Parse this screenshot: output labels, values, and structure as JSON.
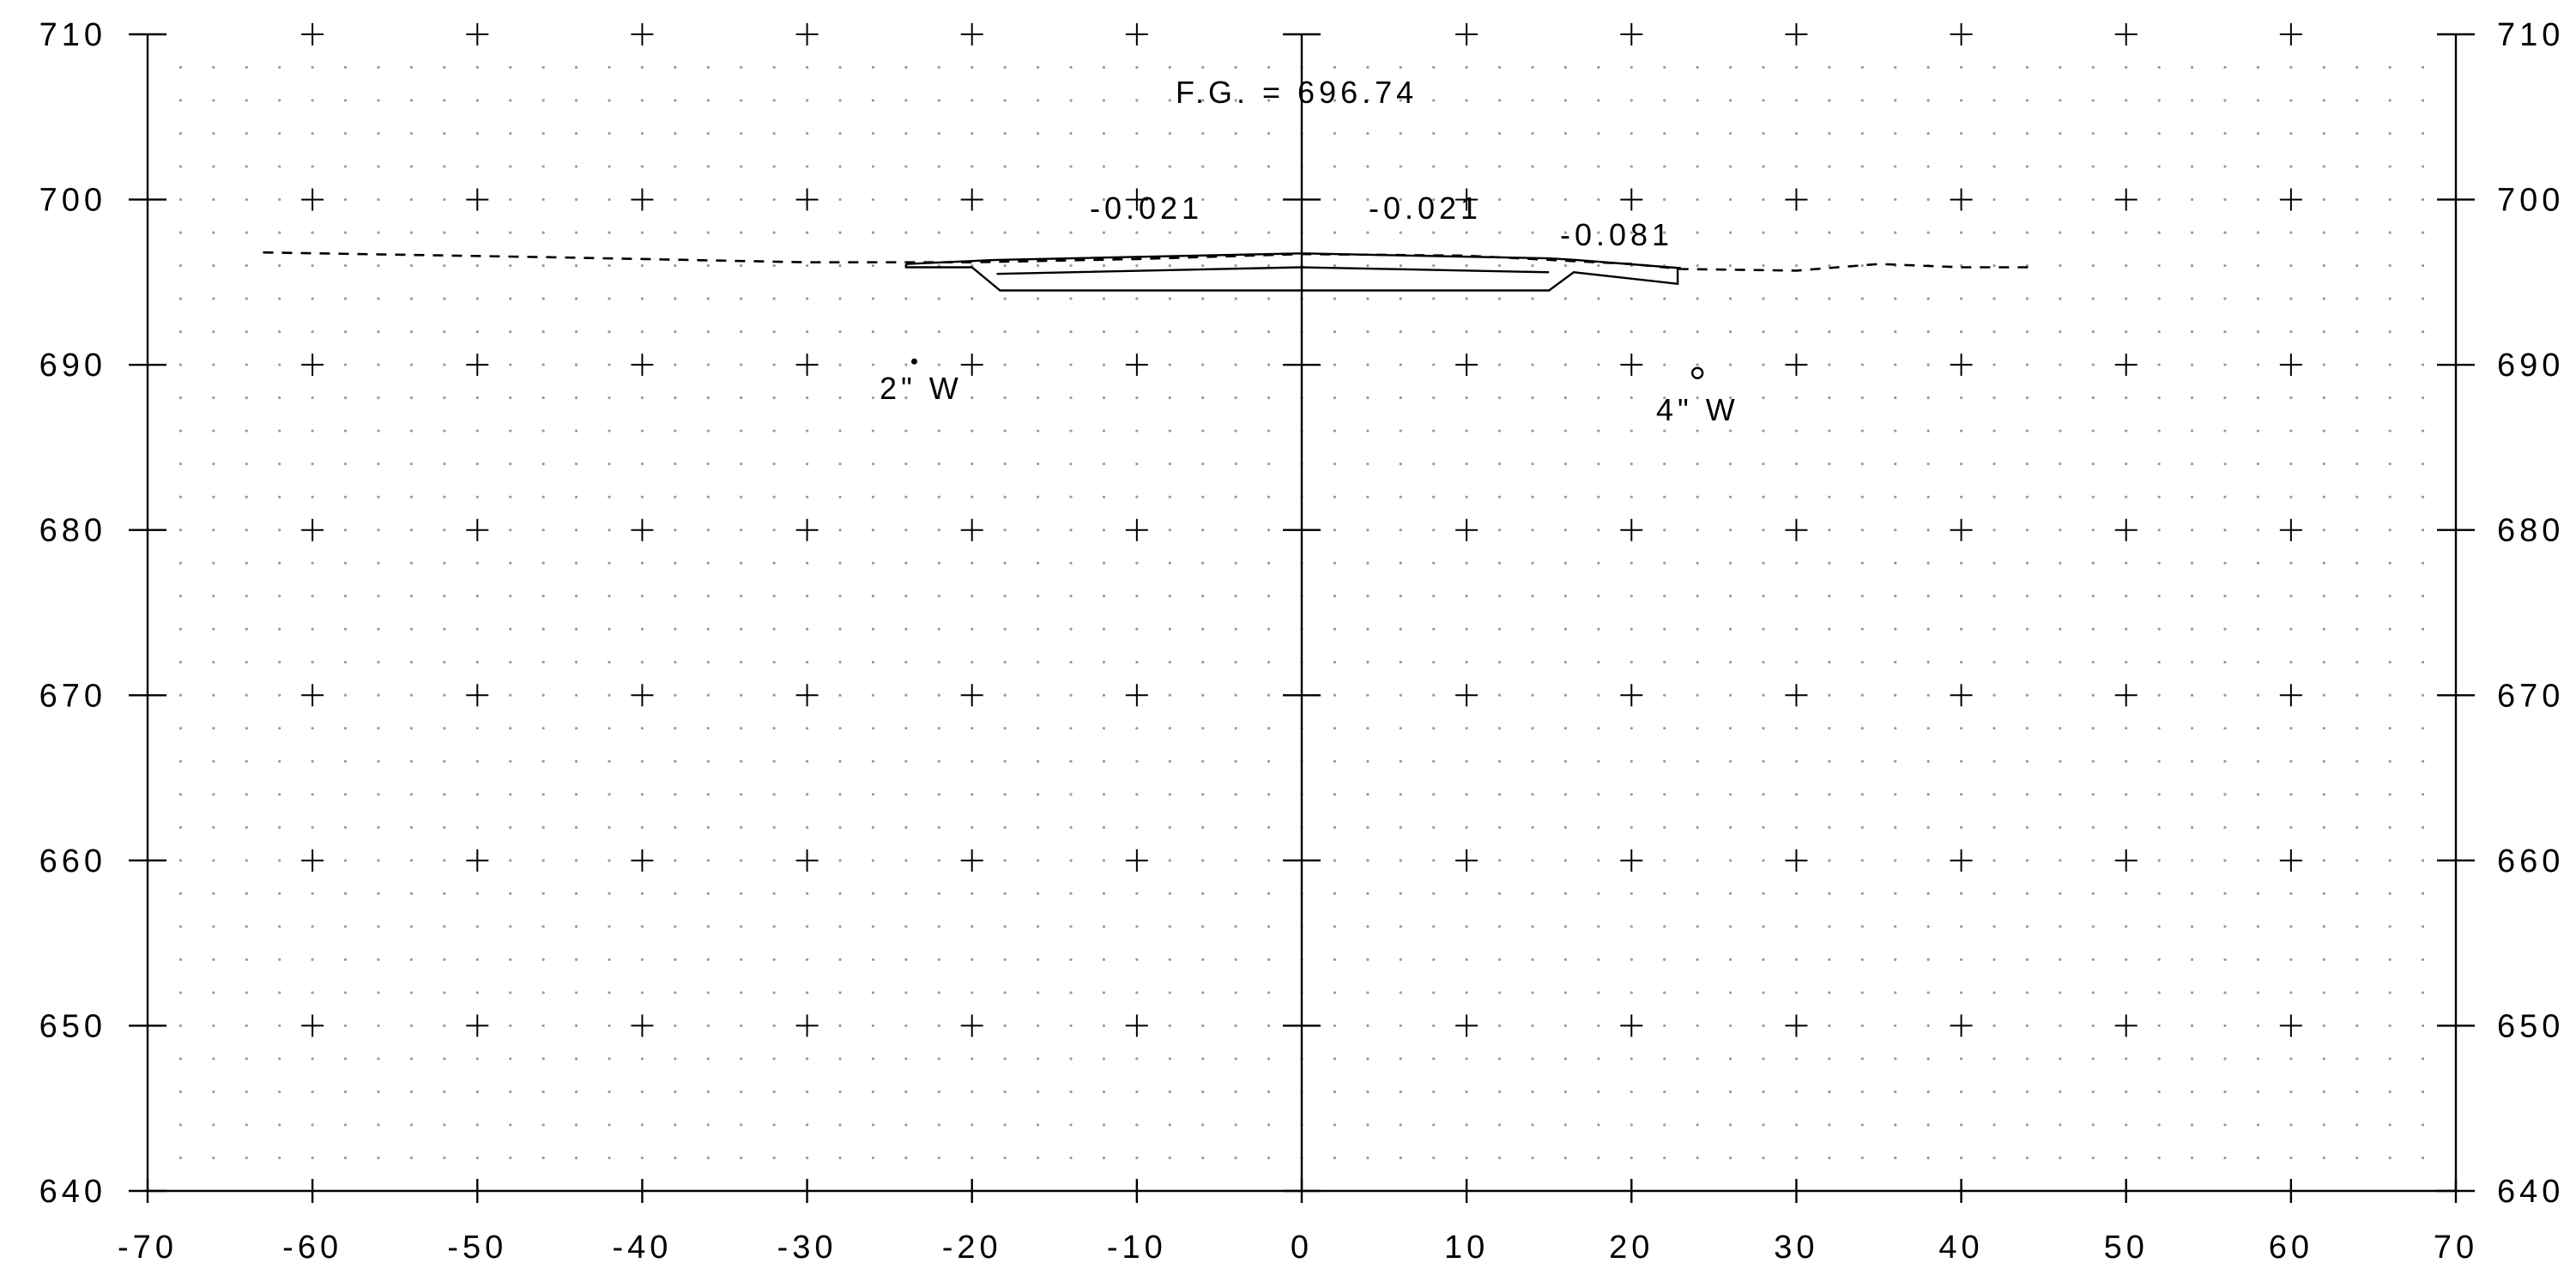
{
  "figure": {
    "x_axis": {
      "min": -70,
      "max": 70,
      "step": 10,
      "tick_labels": [
        "-70",
        "-60",
        "-50",
        "-40",
        "-30",
        "-20",
        "-10",
        "0",
        "10",
        "20",
        "30",
        "40",
        "50",
        "60",
        "70"
      ]
    },
    "y_axis": {
      "min": 640,
      "max": 710,
      "step": 10,
      "tick_labels": [
        "640",
        "650",
        "660",
        "670",
        "680",
        "690",
        "700",
        "710"
      ]
    },
    "grid": {
      "minor_dots": true,
      "minor_step": 2,
      "major_crosses": true
    },
    "annotations": {
      "finish_grade": "F.G. = 696.74",
      "slope_left": "-0.021",
      "slope_right": "-0.021",
      "slope_shoulder": "-0.081",
      "utility_left": "2\" W",
      "utility_right": "4\" W"
    },
    "utility_points": [
      {
        "x": -23.5,
        "y": 690.2,
        "symbol": "dot"
      },
      {
        "x": 24.0,
        "y": 689.5,
        "symbol": "circle"
      }
    ],
    "existing_ground": [
      [
        -63,
        696.8
      ],
      [
        -45,
        696.5
      ],
      [
        -30,
        696.2
      ],
      [
        -20,
        696.2
      ],
      [
        -10,
        696.4
      ],
      [
        0,
        696.7
      ],
      [
        10,
        696.6
      ],
      [
        20,
        696.1
      ],
      [
        23,
        695.8
      ],
      [
        30,
        695.7
      ],
      [
        35,
        696.1
      ],
      [
        40,
        695.9
      ],
      [
        44.5,
        695.9
      ]
    ],
    "proposed_top": [
      [
        -24,
        696.1
      ],
      [
        -18.5,
        696.35
      ],
      [
        0,
        696.74
      ],
      [
        15,
        696.44
      ],
      [
        16.6,
        696.35
      ],
      [
        23,
        695.85
      ]
    ],
    "proposed_subgrade": [
      [
        -18.5,
        695.5
      ],
      [
        0,
        695.9
      ],
      [
        15,
        695.6
      ]
    ],
    "pavement_left_edge": [
      [
        -24,
        696.1
      ],
      [
        -24,
        695.9
      ],
      [
        -20,
        695.9
      ],
      [
        -18.3,
        694.5
      ],
      [
        15,
        694.5
      ],
      [
        16.5,
        695.6
      ],
      [
        22.8,
        694.9
      ],
      [
        22.8,
        695.85
      ]
    ]
  }
}
